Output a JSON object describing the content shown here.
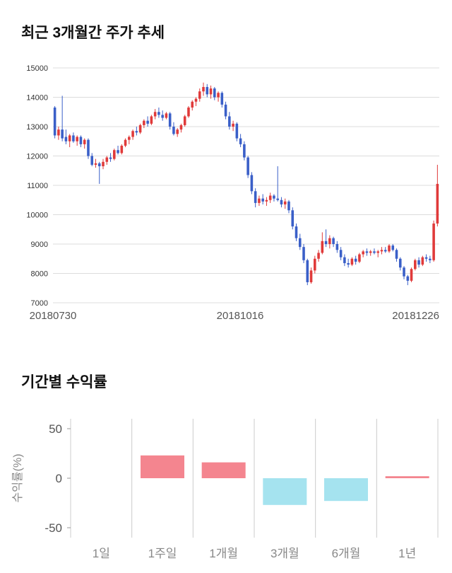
{
  "chart_data": [
    {
      "type": "candlestick",
      "title": "최근 3개월간 주가 추세",
      "ylim": [
        7000,
        15000
      ],
      "y_ticks": [
        7000,
        8000,
        9000,
        10000,
        11000,
        12000,
        13000,
        14000,
        15000
      ],
      "x_labels": [
        "20180730",
        "20181016",
        "20181226"
      ],
      "grid": "horizontal",
      "colors": {
        "up": "#e03a3a",
        "down": "#3a5fc8",
        "grid": "#dcdcdc",
        "tick_text": "#333333",
        "axis_text": "#555555"
      },
      "candles": [
        [
          13650,
          13700,
          12600,
          12700
        ],
        [
          12700,
          13000,
          12550,
          12900
        ],
        [
          12900,
          14050,
          12500,
          12600
        ],
        [
          12650,
          12900,
          12400,
          12500
        ],
        [
          12500,
          12750,
          12300,
          12700
        ],
        [
          12700,
          12800,
          12450,
          12500
        ],
        [
          12500,
          12700,
          12350,
          12650
        ],
        [
          12650,
          12700,
          12300,
          12400
        ],
        [
          12400,
          12600,
          12250,
          12550
        ],
        [
          12550,
          12600,
          11900,
          12000
        ],
        [
          12000,
          12100,
          11650,
          11700
        ],
        [
          11700,
          11900,
          11600,
          11750
        ],
        [
          11750,
          11800,
          11050,
          11650
        ],
        [
          11650,
          11900,
          11550,
          11800
        ],
        [
          11800,
          12000,
          11700,
          11950
        ],
        [
          11950,
          12100,
          11800,
          11900
        ],
        [
          11900,
          12250,
          11850,
          12200
        ],
        [
          12200,
          12350,
          12050,
          12100
        ],
        [
          12100,
          12400,
          12050,
          12350
        ],
        [
          12350,
          12600,
          12300,
          12550
        ],
        [
          12550,
          12700,
          12400,
          12650
        ],
        [
          12650,
          12900,
          12550,
          12850
        ],
        [
          12850,
          13000,
          12700,
          12800
        ],
        [
          12800,
          13100,
          12750,
          13050
        ],
        [
          13050,
          13250,
          12950,
          13200
        ],
        [
          13200,
          13350,
          13000,
          13100
        ],
        [
          13100,
          13400,
          13050,
          13350
        ],
        [
          13350,
          13600,
          13250,
          13500
        ],
        [
          13500,
          13650,
          13300,
          13400
        ],
        [
          13400,
          13550,
          13200,
          13300
        ],
        [
          13300,
          13500,
          13250,
          13450
        ],
        [
          13450,
          13500,
          12900,
          13000
        ],
        [
          13000,
          13150,
          12700,
          12750
        ],
        [
          12750,
          12950,
          12650,
          12900
        ],
        [
          12900,
          13100,
          12800,
          13050
        ],
        [
          13050,
          13400,
          13000,
          13350
        ],
        [
          13350,
          13700,
          13300,
          13650
        ],
        [
          13650,
          13900,
          13550,
          13850
        ],
        [
          13850,
          14000,
          13700,
          13950
        ],
        [
          13950,
          14300,
          13850,
          14200
        ],
        [
          14200,
          14500,
          14050,
          14350
        ],
        [
          14350,
          14450,
          14000,
          14100
        ],
        [
          14100,
          14400,
          13950,
          14300
        ],
        [
          14300,
          14350,
          13900,
          14000
        ],
        [
          14000,
          14200,
          13850,
          14150
        ],
        [
          14150,
          14200,
          13650,
          13750
        ],
        [
          13750,
          13850,
          13250,
          13350
        ],
        [
          13350,
          13500,
          12900,
          13000
        ],
        [
          13000,
          13200,
          12850,
          13100
        ],
        [
          13100,
          13150,
          12500,
          12600
        ],
        [
          12600,
          12750,
          12300,
          12400
        ],
        [
          12400,
          12500,
          11850,
          11950
        ],
        [
          11950,
          12000,
          11250,
          11350
        ],
        [
          11350,
          11450,
          10700,
          10800
        ],
        [
          10800,
          10900,
          10250,
          10400
        ],
        [
          10400,
          10650,
          10300,
          10550
        ],
        [
          10550,
          10700,
          10350,
          10450
        ],
        [
          10450,
          10600,
          10300,
          10500
        ],
        [
          10500,
          10750,
          10400,
          10650
        ],
        [
          10650,
          10700,
          10450,
          10550
        ],
        [
          10550,
          11650,
          10450,
          10500
        ],
        [
          10500,
          10600,
          10250,
          10350
        ],
        [
          10350,
          10550,
          10200,
          10450
        ],
        [
          10450,
          10500,
          10050,
          10150
        ],
        [
          10150,
          10250,
          9500,
          9600
        ],
        [
          9600,
          9700,
          9100,
          9200
        ],
        [
          9200,
          9350,
          8800,
          8900
        ],
        [
          8900,
          9000,
          8350,
          8450
        ],
        [
          8450,
          8500,
          7600,
          7700
        ],
        [
          7700,
          8200,
          7650,
          8100
        ],
        [
          8100,
          8600,
          8000,
          8500
        ],
        [
          8500,
          8800,
          8400,
          8700
        ],
        [
          8700,
          9400,
          8650,
          9100
        ],
        [
          9100,
          9500,
          8900,
          9000
        ],
        [
          9000,
          9300,
          8850,
          9200
        ],
        [
          9200,
          9250,
          8900,
          9000
        ],
        [
          9000,
          9100,
          8700,
          8800
        ],
        [
          8800,
          8900,
          8450,
          8550
        ],
        [
          8550,
          8650,
          8250,
          8350
        ],
        [
          8350,
          8500,
          8200,
          8300
        ],
        [
          8300,
          8550,
          8250,
          8500
        ],
        [
          8500,
          8600,
          8300,
          8400
        ],
        [
          8400,
          8700,
          8350,
          8650
        ],
        [
          8650,
          8800,
          8550,
          8750
        ],
        [
          8750,
          8850,
          8600,
          8700
        ],
        [
          8700,
          8800,
          8600,
          8750
        ],
        [
          8750,
          8850,
          8650,
          8700
        ],
        [
          8700,
          8800,
          8550,
          8750
        ],
        [
          8750,
          8900,
          8650,
          8800
        ],
        [
          8800,
          8900,
          8700,
          8750
        ],
        [
          8750,
          9000,
          8700,
          8950
        ],
        [
          8950,
          9000,
          8750,
          8800
        ],
        [
          8800,
          8850,
          8400,
          8500
        ],
        [
          8500,
          8550,
          8100,
          8200
        ],
        [
          8200,
          8250,
          7800,
          7900
        ],
        [
          7900,
          7950,
          7600,
          7750
        ],
        [
          7750,
          8200,
          7700,
          8150
        ],
        [
          8150,
          8500,
          8100,
          8450
        ],
        [
          8450,
          8550,
          8200,
          8300
        ],
        [
          8300,
          8600,
          8250,
          8550
        ],
        [
          8550,
          8650,
          8400,
          8500
        ],
        [
          8500,
          8600,
          8350,
          8450
        ],
        [
          8450,
          9800,
          8400,
          9700
        ],
        [
          9700,
          11700,
          9600,
          11050
        ]
      ]
    },
    {
      "type": "bar",
      "title": "기간별 수익률",
      "ylabel": "수익률(%)",
      "ylim": [
        -50,
        50
      ],
      "y_ticks": [
        50,
        0,
        -50
      ],
      "categories": [
        "1일",
        "1주일",
        "1개월",
        "3개월",
        "6개월",
        "1년"
      ],
      "values": [
        0,
        23,
        16,
        -27,
        -23,
        2
      ],
      "grid": "vertical",
      "legend": "none",
      "colors": {
        "pos": "#f4858f",
        "neg": "#a5e3ef",
        "grid": "#cccccc",
        "tick_text": "#555555",
        "axis_text": "#888888"
      }
    }
  ]
}
